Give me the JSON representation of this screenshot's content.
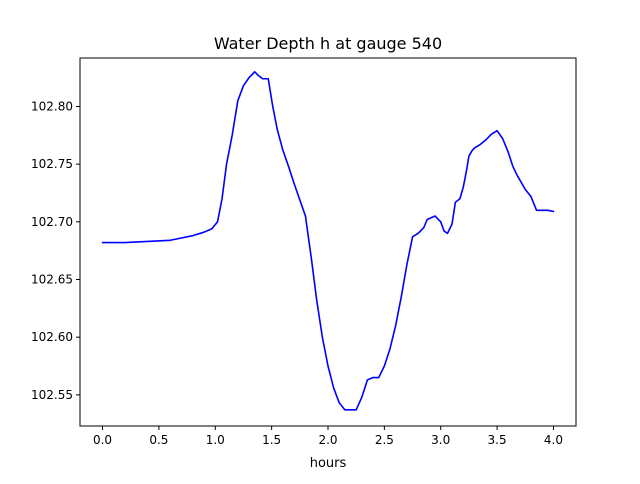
{
  "chart_data": {
    "type": "line",
    "title": "Water Depth h at gauge 540",
    "xlabel": "hours",
    "ylabel": "",
    "xlim": [
      -0.2,
      4.2
    ],
    "ylim": [
      102.523,
      102.842
    ],
    "xticks": [
      0.0,
      0.5,
      1.0,
      1.5,
      2.0,
      2.5,
      3.0,
      3.5,
      4.0
    ],
    "xtick_labels": [
      "0.0",
      "0.5",
      "1.0",
      "1.5",
      "2.0",
      "2.5",
      "3.0",
      "3.5",
      "4.0"
    ],
    "yticks": [
      102.55,
      102.6,
      102.65,
      102.7,
      102.75,
      102.8
    ],
    "ytick_labels": [
      "102.55",
      "102.60",
      "102.65",
      "102.70",
      "102.75",
      "102.80"
    ],
    "grid": false,
    "series": [
      {
        "color": "#0000ff",
        "x": [
          0.0,
          0.2,
          0.4,
          0.6,
          0.65,
          0.8,
          0.9,
          0.97,
          1.02,
          1.06,
          1.1,
          1.15,
          1.2,
          1.25,
          1.3,
          1.35,
          1.38,
          1.42,
          1.47,
          1.51,
          1.55,
          1.6,
          1.65,
          1.7,
          1.8,
          1.85,
          1.9,
          1.95,
          2.0,
          2.05,
          2.1,
          2.15,
          2.2,
          2.25,
          2.3,
          2.35,
          2.4,
          2.45,
          2.5,
          2.55,
          2.6,
          2.65,
          2.7,
          2.75,
          2.8,
          2.85,
          2.88,
          2.95,
          3.0,
          3.03,
          3.06,
          3.1,
          3.13,
          3.17,
          3.2,
          3.23,
          3.25,
          3.28,
          3.3,
          3.35,
          3.4,
          3.45,
          3.5,
          3.55,
          3.6,
          3.64,
          3.68,
          3.75,
          3.8,
          3.85,
          3.9,
          3.95,
          4.0
        ],
        "y": [
          102.682,
          102.682,
          102.683,
          102.684,
          102.685,
          102.688,
          102.691,
          102.694,
          102.7,
          102.72,
          102.75,
          102.775,
          102.805,
          102.818,
          102.825,
          102.83,
          102.827,
          102.824,
          102.824,
          102.8,
          102.78,
          102.762,
          102.748,
          102.733,
          102.705,
          102.67,
          102.632,
          102.6,
          102.575,
          102.556,
          102.543,
          102.537,
          102.537,
          102.537,
          102.548,
          102.563,
          102.565,
          102.565,
          102.575,
          102.59,
          102.61,
          102.635,
          102.663,
          102.687,
          102.69,
          102.695,
          102.702,
          102.705,
          102.7,
          102.692,
          102.69,
          102.698,
          102.717,
          102.72,
          102.73,
          102.745,
          102.757,
          102.762,
          102.764,
          102.767,
          102.771,
          102.776,
          102.779,
          102.772,
          102.76,
          102.748,
          102.74,
          102.728,
          102.722,
          102.71,
          102.71,
          102.71,
          102.709
        ]
      }
    ]
  }
}
